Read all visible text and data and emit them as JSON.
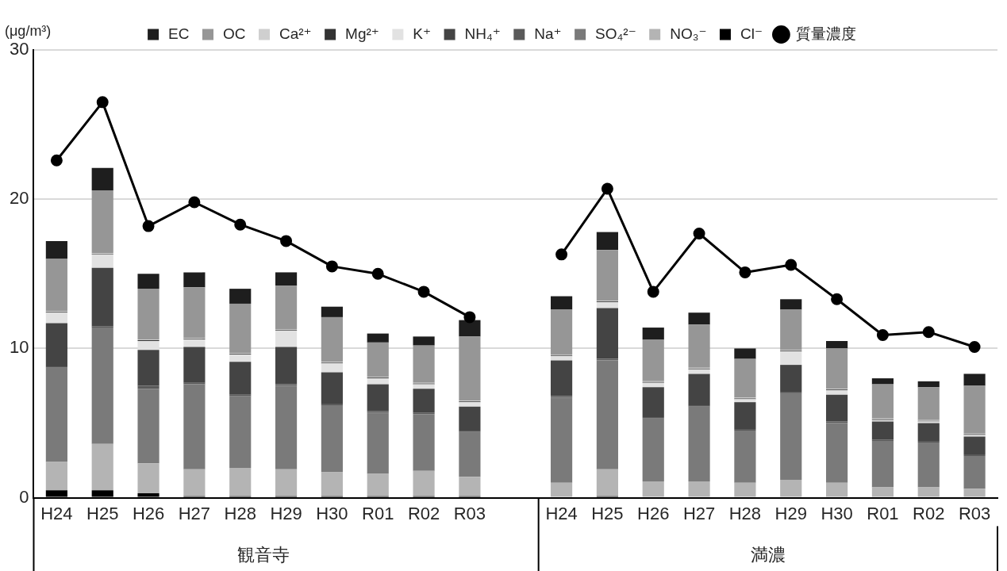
{
  "chart_data": {
    "type": "bar",
    "stacked": true,
    "ylabel": "(μg/m³)",
    "categories": [
      "H24",
      "H25",
      "H26",
      "H27",
      "H28",
      "H29",
      "H30",
      "R01",
      "R02",
      "R03",
      null,
      "H24",
      "H25",
      "H26",
      "H27",
      "H28",
      "H29",
      "H30",
      "R01",
      "R02",
      "R03"
    ],
    "annotations": [
      "観音寺",
      "満濃"
    ],
    "ylim": [
      0,
      30
    ],
    "yticks": [
      0,
      10,
      20,
      30
    ],
    "grid": "y",
    "legend": "top",
    "series": [
      {
        "name": "Cl⁻",
        "color": "#000000",
        "values": [
          0.5,
          0.5,
          0.3,
          0.1,
          0.1,
          0.1,
          0.1,
          0.1,
          0.1,
          0.1,
          null,
          null,
          0.1,
          null,
          null,
          null,
          null,
          null,
          null,
          null,
          null
        ]
      },
      {
        "name": "NO₃⁻",
        "color": "#b4b4b4",
        "values": [
          1.9,
          3.1,
          2.0,
          1.8,
          1.9,
          1.8,
          1.6,
          1.5,
          1.7,
          1.3,
          null,
          1.0,
          1.8,
          1.1,
          1.1,
          1.0,
          1.2,
          1.0,
          0.7,
          0.7,
          0.6
        ]
      },
      {
        "name": "SO₄²⁻",
        "color": "#7a7a7a",
        "values": [
          6.3,
          7.8,
          5.0,
          5.7,
          4.8,
          5.6,
          4.5,
          4.1,
          3.8,
          3.0,
          null,
          5.7,
          7.3,
          4.2,
          5.0,
          3.5,
          5.8,
          4.0,
          3.1,
          3.0,
          2.2
        ]
      },
      {
        "name": "Na⁺",
        "color": "#5a5a5a",
        "values": [
          0.1,
          0.1,
          0.2,
          0.1,
          0.1,
          0.1,
          0.1,
          0.1,
          0.1,
          0.1,
          null,
          0.1,
          0.1,
          0.1,
          0.1,
          0.1,
          0.1,
          0.1,
          0.1,
          0.1,
          0.1
        ]
      },
      {
        "name": "NH₄⁺",
        "color": "#444444",
        "values": [
          2.9,
          3.9,
          2.4,
          2.4,
          2.2,
          2.5,
          2.1,
          1.8,
          1.6,
          1.6,
          null,
          2.4,
          3.4,
          2.0,
          2.1,
          1.8,
          1.8,
          1.8,
          1.2,
          1.2,
          1.2
        ]
      },
      {
        "name": "K⁺",
        "color": "#e2e2e2",
        "values": [
          0.7,
          0.9,
          0.6,
          0.5,
          0.5,
          1.1,
          0.6,
          0.4,
          0.3,
          0.3,
          null,
          0.3,
          0.4,
          0.3,
          0.3,
          0.2,
          0.9,
          0.3,
          0.1,
          0.1,
          0.1
        ]
      },
      {
        "name": "Mg²⁺",
        "color": "#333333",
        "values": [
          0.05,
          0.05,
          0.05,
          0.05,
          0.05,
          0.05,
          0.05,
          0.05,
          0.05,
          0.05,
          null,
          0.05,
          0.05,
          0.05,
          0.05,
          0.05,
          0.05,
          0.05,
          0.05,
          0.05,
          0.05
        ]
      },
      {
        "name": "Ca²⁺",
        "color": "#cfcfcf",
        "values": [
          0.05,
          0.05,
          0.05,
          0.05,
          0.05,
          0.05,
          0.05,
          0.05,
          0.05,
          0.05,
          null,
          0.05,
          0.05,
          0.05,
          0.05,
          0.05,
          0.05,
          0.05,
          0.05,
          0.05,
          0.05
        ]
      },
      {
        "name": "OC",
        "color": "#969696",
        "values": [
          3.5,
          4.2,
          3.4,
          3.4,
          3.3,
          2.9,
          3.0,
          2.3,
          2.5,
          4.3,
          null,
          3.0,
          3.4,
          2.8,
          2.9,
          2.6,
          2.7,
          2.7,
          2.3,
          2.2,
          3.2
        ]
      },
      {
        "name": "EC",
        "color": "#1e1e1e",
        "values": [
          1.2,
          1.5,
          1.0,
          1.0,
          1.0,
          0.9,
          0.7,
          0.6,
          0.6,
          1.1,
          null,
          0.9,
          1.2,
          0.8,
          0.8,
          0.7,
          0.7,
          0.5,
          0.4,
          0.4,
          0.8
        ]
      },
      {
        "name": "質量濃度",
        "type": "line",
        "color": "#000000",
        "marker": "circle",
        "line_style": "solid",
        "values": [
          22.6,
          26.5,
          18.2,
          19.8,
          18.3,
          17.2,
          15.5,
          15.0,
          13.8,
          12.1,
          null,
          16.3,
          20.7,
          13.8,
          17.7,
          15.1,
          15.6,
          13.3,
          10.9,
          11.1,
          10.1
        ]
      }
    ]
  }
}
